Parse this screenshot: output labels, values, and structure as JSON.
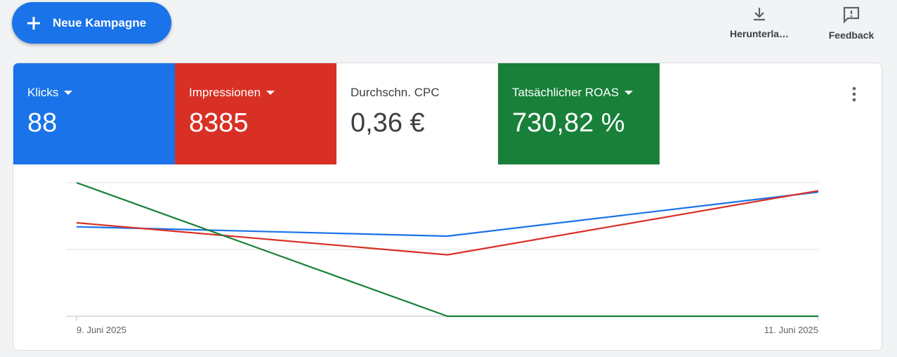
{
  "header": {
    "new_campaign_button": "Neue Kampagne",
    "download_label": "Herunterla…",
    "feedback_label": "Feedback"
  },
  "metrics": [
    {
      "label": "Klicks",
      "value": "88",
      "color": "#1a73e8",
      "dropdown": true
    },
    {
      "label": "Impressionen",
      "value": "8385",
      "color": "#d93025",
      "dropdown": true
    },
    {
      "label": "Durchschn. CPC",
      "value": "0,36 €",
      "color": "#ffffff",
      "dropdown": false
    },
    {
      "label": "Tatsächlicher ROAS",
      "value": "730,82 %",
      "color": "#188038",
      "dropdown": true
    }
  ],
  "chart_data": {
    "type": "line",
    "categories": [
      "9. Juni 2025",
      null,
      "11. Juni 2025"
    ],
    "series": [
      {
        "color": "#1a73e8",
        "values": [
          67,
          60,
          93
        ]
      },
      {
        "color": "#d93025",
        "values": [
          70,
          46,
          94
        ]
      },
      {
        "color": "#188038",
        "values": [
          100,
          0,
          0
        ]
      }
    ],
    "ylim": [
      0,
      100
    ],
    "ygrid": [
      0,
      50,
      100
    ],
    "grid": true
  }
}
